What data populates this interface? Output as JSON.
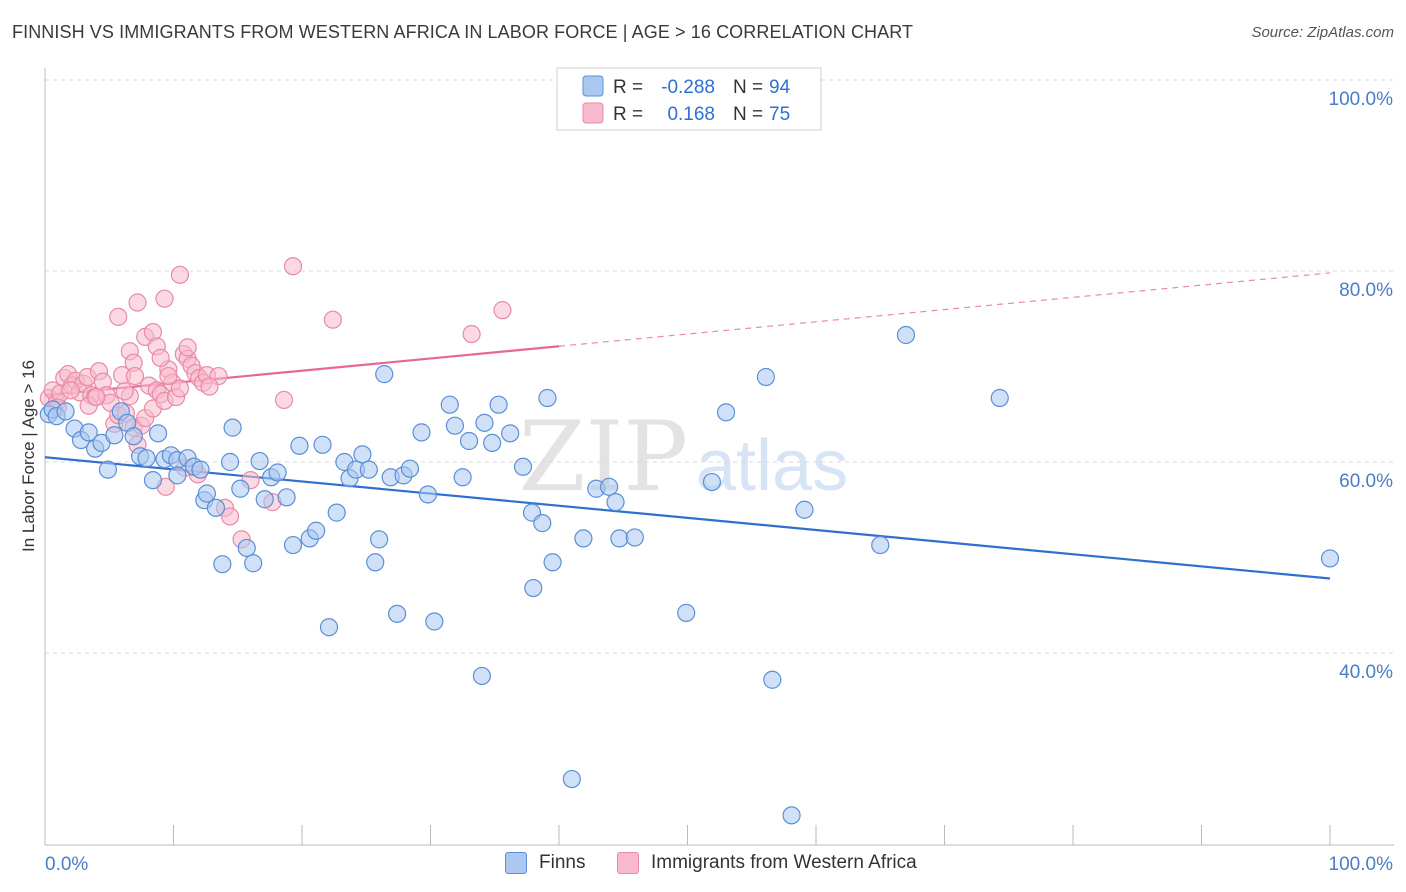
{
  "title": "FINNISH VS IMMIGRANTS FROM WESTERN AFRICA IN LABOR FORCE | AGE > 16 CORRELATION CHART",
  "source": "Source: ZipAtlas.com",
  "watermark": {
    "zip": "ZIP",
    "atlas": "atlas"
  },
  "legend": {
    "r_label": "R =",
    "n_label": "N =",
    "rows": [
      {
        "r": "-0.288",
        "n": "94"
      },
      {
        "r": "0.168",
        "n": "75"
      }
    ]
  },
  "colors": {
    "finns_fill": "#aac8f0",
    "finns_stroke": "#5b8fd8",
    "finns_line": "#2f6fd0",
    "wa_fill": "#f7b9cc",
    "wa_stroke": "#e88aa8",
    "wa_line": "#e8679a",
    "axis_label": "#4a7cc7",
    "grid": "#d8d8d8"
  },
  "chart_data": {
    "type": "scatter",
    "title": "FINNISH VS IMMIGRANTS FROM WESTERN AFRICA IN LABOR FORCE | AGE > 16 CORRELATION CHART",
    "xlabel": "",
    "ylabel": "In Labor Force | Age > 16",
    "xlim": [
      0,
      100
    ],
    "ylim": [
      20,
      102
    ],
    "x_tick_labels": [
      "0.0%",
      "100.0%"
    ],
    "y_ticks": [
      40,
      60,
      80,
      100
    ],
    "y_tick_labels": [
      "40.0%",
      "60.0%",
      "80.0%",
      "100.0%"
    ],
    "grid": true,
    "legend_position": "top-center",
    "series": [
      {
        "name": "Finns",
        "r": -0.288,
        "n": 94,
        "trend": {
          "x0": 0,
          "y0": 60.5,
          "x1": 100,
          "y1": 47.8,
          "dashed_from": null
        },
        "points": [
          [
            0.3,
            65.0
          ],
          [
            0.6,
            65.5
          ],
          [
            0.9,
            64.8
          ],
          [
            1.6,
            65.3
          ],
          [
            2.3,
            63.5
          ],
          [
            2.8,
            62.3
          ],
          [
            3.4,
            63.1
          ],
          [
            3.9,
            61.4
          ],
          [
            4.4,
            62.0
          ],
          [
            4.9,
            59.2
          ],
          [
            5.4,
            62.8
          ],
          [
            5.9,
            65.3
          ],
          [
            6.4,
            64.1
          ],
          [
            6.9,
            62.7
          ],
          [
            7.4,
            60.6
          ],
          [
            7.9,
            60.4
          ],
          [
            8.4,
            58.1
          ],
          [
            8.8,
            63.0
          ],
          [
            9.3,
            60.3
          ],
          [
            9.8,
            60.7
          ],
          [
            10.3,
            60.2
          ],
          [
            10.3,
            58.6
          ],
          [
            11.1,
            60.4
          ],
          [
            11.6,
            59.5
          ],
          [
            12.1,
            59.2
          ],
          [
            12.4,
            56.0
          ],
          [
            12.6,
            56.7
          ],
          [
            13.3,
            55.2
          ],
          [
            13.8,
            49.3
          ],
          [
            14.4,
            60.0
          ],
          [
            14.6,
            63.6
          ],
          [
            15.2,
            57.2
          ],
          [
            15.7,
            51.0
          ],
          [
            16.2,
            49.4
          ],
          [
            16.7,
            60.1
          ],
          [
            17.1,
            56.1
          ],
          [
            17.6,
            58.4
          ],
          [
            18.1,
            58.9
          ],
          [
            18.8,
            56.3
          ],
          [
            19.3,
            51.3
          ],
          [
            19.8,
            61.7
          ],
          [
            20.6,
            52.0
          ],
          [
            21.1,
            52.8
          ],
          [
            21.6,
            61.8
          ],
          [
            22.1,
            42.7
          ],
          [
            22.7,
            54.7
          ],
          [
            23.3,
            60.0
          ],
          [
            23.7,
            58.3
          ],
          [
            24.2,
            59.2
          ],
          [
            24.7,
            60.8
          ],
          [
            25.2,
            59.2
          ],
          [
            25.7,
            49.5
          ],
          [
            26.0,
            51.9
          ],
          [
            26.4,
            69.2
          ],
          [
            26.9,
            58.4
          ],
          [
            27.4,
            44.1
          ],
          [
            27.9,
            58.6
          ],
          [
            28.4,
            59.3
          ],
          [
            29.3,
            63.1
          ],
          [
            29.8,
            56.6
          ],
          [
            30.3,
            43.3
          ],
          [
            31.5,
            66.0
          ],
          [
            31.9,
            63.8
          ],
          [
            32.5,
            58.4
          ],
          [
            33.0,
            62.2
          ],
          [
            34.0,
            37.6
          ],
          [
            34.2,
            64.1
          ],
          [
            34.8,
            62.0
          ],
          [
            35.3,
            66.0
          ],
          [
            36.2,
            63.0
          ],
          [
            37.2,
            59.5
          ],
          [
            37.9,
            54.7
          ],
          [
            38.0,
            46.8
          ],
          [
            38.7,
            53.6
          ],
          [
            39.1,
            66.7
          ],
          [
            39.5,
            49.5
          ],
          [
            41.0,
            26.8
          ],
          [
            41.9,
            52.0
          ],
          [
            42.9,
            57.2
          ],
          [
            43.9,
            57.4
          ],
          [
            44.4,
            55.8
          ],
          [
            44.7,
            52.0
          ],
          [
            45.9,
            52.1
          ],
          [
            49.9,
            44.2
          ],
          [
            51.9,
            57.9
          ],
          [
            53.0,
            65.2
          ],
          [
            56.1,
            68.9
          ],
          [
            56.6,
            37.2
          ],
          [
            58.1,
            23.0
          ],
          [
            59.1,
            55.0
          ],
          [
            65.0,
            51.3
          ],
          [
            67.0,
            73.3
          ],
          [
            74.3,
            66.7
          ],
          [
            100,
            49.9
          ]
        ]
      },
      {
        "name": "Immigrants from Western Africa",
        "r": 0.168,
        "n": 75,
        "trend": {
          "x0": 0,
          "y0": 67.0,
          "x1": 100,
          "y1": 79.8,
          "dashed_from": 40
        },
        "points": [
          [
            0.3,
            66.7
          ],
          [
            0.6,
            67.5
          ],
          [
            0.9,
            66.2
          ],
          [
            1.2,
            67.2
          ],
          [
            1.5,
            68.8
          ],
          [
            1.8,
            69.2
          ],
          [
            2.1,
            68.0
          ],
          [
            2.4,
            68.5
          ],
          [
            2.7,
            67.3
          ],
          [
            3.0,
            68.2
          ],
          [
            3.3,
            68.9
          ],
          [
            3.6,
            67.0
          ],
          [
            3.9,
            66.8
          ],
          [
            4.2,
            69.5
          ],
          [
            4.5,
            68.4
          ],
          [
            4.8,
            67.0
          ],
          [
            5.1,
            66.2
          ],
          [
            5.4,
            64.0
          ],
          [
            5.7,
            64.9
          ],
          [
            6.0,
            69.1
          ],
          [
            6.3,
            65.1
          ],
          [
            6.6,
            66.9
          ],
          [
            6.9,
            63.6
          ],
          [
            7.2,
            61.8
          ],
          [
            7.5,
            63.8
          ],
          [
            7.8,
            64.6
          ],
          [
            8.1,
            68.0
          ],
          [
            8.4,
            65.6
          ],
          [
            8.7,
            67.5
          ],
          [
            9.0,
            67.1
          ],
          [
            9.3,
            66.4
          ],
          [
            9.6,
            69.7
          ],
          [
            9.9,
            68.3
          ],
          [
            10.2,
            66.8
          ],
          [
            10.5,
            67.7
          ],
          [
            10.8,
            71.3
          ],
          [
            11.1,
            70.8
          ],
          [
            11.4,
            70.1
          ],
          [
            11.7,
            69.3
          ],
          [
            12.0,
            68.8
          ],
          [
            5.7,
            75.2
          ],
          [
            6.6,
            71.6
          ],
          [
            6.9,
            70.4
          ],
          [
            7.2,
            76.7
          ],
          [
            7.8,
            73.1
          ],
          [
            8.4,
            73.6
          ],
          [
            8.7,
            72.1
          ],
          [
            9.0,
            70.9
          ],
          [
            9.3,
            77.1
          ],
          [
            9.6,
            69.0
          ],
          [
            10.5,
            79.6
          ],
          [
            11.1,
            72.0
          ],
          [
            12.3,
            68.3
          ],
          [
            12.6,
            69.1
          ],
          [
            13.5,
            69.0
          ],
          [
            14.0,
            55.2
          ],
          [
            14.4,
            54.3
          ],
          [
            15.3,
            51.9
          ],
          [
            16.0,
            58.1
          ],
          [
            17.7,
            55.8
          ],
          [
            18.6,
            66.5
          ],
          [
            19.3,
            80.5
          ],
          [
            22.4,
            74.9
          ],
          [
            33.2,
            73.4
          ],
          [
            35.6,
            75.9
          ],
          [
            11.9,
            58.7
          ],
          [
            10.9,
            59.4
          ],
          [
            9.4,
            57.4
          ],
          [
            7.0,
            69.0
          ],
          [
            3.4,
            65.9
          ],
          [
            1.0,
            65.7
          ],
          [
            2.0,
            67.5
          ],
          [
            4.0,
            66.8
          ],
          [
            12.8,
            67.9
          ],
          [
            6.2,
            67.4
          ]
        ]
      }
    ]
  }
}
